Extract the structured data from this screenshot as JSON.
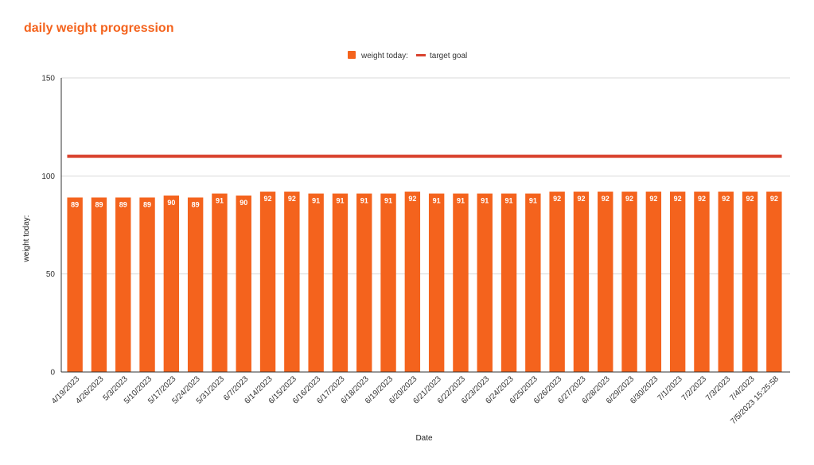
{
  "chart_data": {
    "type": "bar",
    "title": "daily weight progression",
    "xlabel": "Date",
    "ylabel": "weight today:",
    "ylim": [
      0,
      150
    ],
    "yticks": [
      "0",
      "50",
      "100",
      "150"
    ],
    "grid": true,
    "legend_position": "top",
    "categories": [
      "4/19/2023",
      "4/26/2023",
      "5/3/2023",
      "5/10/2023",
      "5/17/2023",
      "5/24/2023",
      "5/31/2023",
      "6/7/2023",
      "6/14/2023",
      "6/15/2023",
      "6/16/2023",
      "6/17/2023",
      "6/18/2023",
      "6/19/2023",
      "6/20/2023",
      "6/21/2023",
      "6/22/2023",
      "6/23/2023",
      "6/24/2023",
      "6/25/2023",
      "6/26/2023",
      "6/27/2023",
      "6/28/2023",
      "6/29/2023",
      "6/30/2023",
      "7/1/2023",
      "7/2/2023",
      "7/3/2023",
      "7/4/2023",
      "7/5/2023 15:25:58"
    ],
    "series": [
      {
        "name": "weight today:",
        "kind": "bar",
        "color": "#f4631d",
        "values": [
          89,
          89,
          89,
          89,
          90,
          89,
          91,
          90,
          92,
          92,
          91,
          91,
          91,
          91,
          92,
          91,
          91,
          91,
          91,
          91,
          92,
          92,
          92,
          92,
          92,
          92,
          92,
          92,
          92,
          92
        ]
      },
      {
        "name": "target goal",
        "kind": "line",
        "color": "#d9432f",
        "value": 110
      }
    ]
  }
}
